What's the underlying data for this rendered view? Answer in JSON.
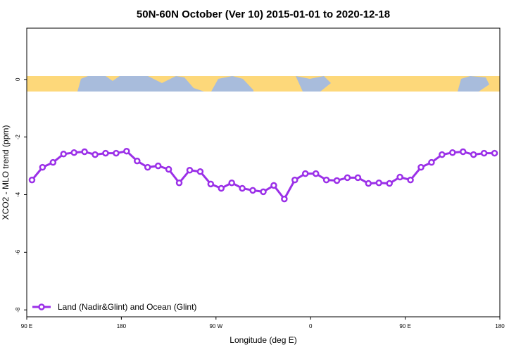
{
  "chart_data": {
    "type": "line",
    "title": "50N-60N October (Ver 10)   2015-01-01 to 2020-12-18",
    "x_label": "Longitude (deg E)",
    "y_label": "XCO2 - MLO trend (ppm)",
    "x": [
      95,
      105,
      115,
      125,
      135,
      145,
      155,
      165,
      175,
      185,
      195,
      205,
      215,
      225,
      235,
      245,
      255,
      265,
      275,
      285,
      295,
      305,
      315,
      325,
      335,
      345,
      355,
      365,
      375,
      385,
      395,
      405,
      415,
      425,
      435,
      445,
      455,
      465,
      475,
      485,
      495,
      505,
      515,
      525,
      535
    ],
    "series": [
      {
        "name": "Land (Nadir&Glint) and Ocean (Glint)",
        "color": "#9b30e8",
        "values": [
          -3.49,
          -3.05,
          -2.88,
          -2.59,
          -2.54,
          -2.51,
          -2.61,
          -2.56,
          -2.56,
          -2.49,
          -2.83,
          -3.05,
          -3.0,
          -3.12,
          -3.59,
          -3.15,
          -3.2,
          -3.63,
          -3.78,
          -3.59,
          -3.78,
          -3.85,
          -3.9,
          -3.68,
          -4.15,
          -3.49,
          -3.27,
          -3.27,
          -3.49,
          -3.51,
          -3.41,
          -3.41,
          -3.61,
          -3.59,
          -3.61,
          -3.39,
          -3.49,
          -3.05,
          -2.88,
          -2.61,
          -2.54,
          -2.51,
          -2.61,
          -2.56,
          -2.56
        ]
      }
    ],
    "xlim": [
      90,
      540
    ],
    "xticks": [
      {
        "value": 90,
        "label": "90 E"
      },
      180,
      {
        "value": 270,
        "label": "90 W"
      },
      {
        "value": 360,
        "label": "0"
      },
      {
        "value": 450,
        "label": "90 E"
      },
      {
        "value": 540,
        "label": "180"
      }
    ],
    "ylim": [
      -8.24,
      1.78
    ],
    "yticks": [
      0,
      -2,
      -4,
      -6,
      -8
    ],
    "legend": "bottom-left"
  }
}
